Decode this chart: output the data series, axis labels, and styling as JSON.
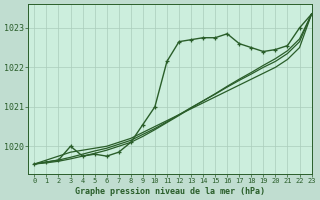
{
  "title": "Graphe pression niveau de la mer (hPa)",
  "background_color": "#c0ddd0",
  "plot_bg_color": "#cceedd",
  "grid_color": "#aaccbb",
  "line_color": "#2a5e2a",
  "xlim": [
    -0.5,
    23
  ],
  "ylim": [
    1019.3,
    1023.6
  ],
  "yticks": [
    1020,
    1021,
    1022,
    1023
  ],
  "xticks": [
    0,
    1,
    2,
    3,
    4,
    5,
    6,
    7,
    8,
    9,
    10,
    11,
    12,
    13,
    14,
    15,
    16,
    17,
    18,
    19,
    20,
    21,
    22,
    23
  ],
  "series_markers": [
    1019.55,
    1019.6,
    1019.65,
    1020.0,
    1019.75,
    1019.8,
    1019.75,
    1019.85,
    1020.1,
    1020.55,
    1021.0,
    1022.15,
    1022.65,
    1022.7,
    1022.75,
    1022.75,
    1022.85,
    1022.6,
    1022.5,
    1022.4,
    1022.45,
    1022.55,
    1023.0,
    1023.35
  ],
  "series_smooth1": [
    1019.55,
    1019.65,
    1019.75,
    1019.85,
    1019.9,
    1019.95,
    1020.0,
    1020.1,
    1020.2,
    1020.35,
    1020.5,
    1020.65,
    1020.8,
    1020.95,
    1021.1,
    1021.25,
    1021.4,
    1021.55,
    1021.7,
    1021.85,
    1022.0,
    1022.2,
    1022.5,
    1023.35
  ],
  "series_smooth2": [
    1019.55,
    1019.6,
    1019.65,
    1019.72,
    1019.8,
    1019.88,
    1019.95,
    1020.05,
    1020.15,
    1020.3,
    1020.45,
    1020.62,
    1020.8,
    1020.98,
    1021.15,
    1021.32,
    1021.5,
    1021.67,
    1021.83,
    1022.0,
    1022.15,
    1022.35,
    1022.65,
    1023.35
  ],
  "series_smooth3": [
    1019.55,
    1019.58,
    1019.62,
    1019.68,
    1019.75,
    1019.82,
    1019.9,
    1020.0,
    1020.1,
    1020.25,
    1020.42,
    1020.6,
    1020.78,
    1020.97,
    1021.15,
    1021.33,
    1021.52,
    1021.7,
    1021.87,
    1022.05,
    1022.22,
    1022.42,
    1022.72,
    1023.35
  ]
}
